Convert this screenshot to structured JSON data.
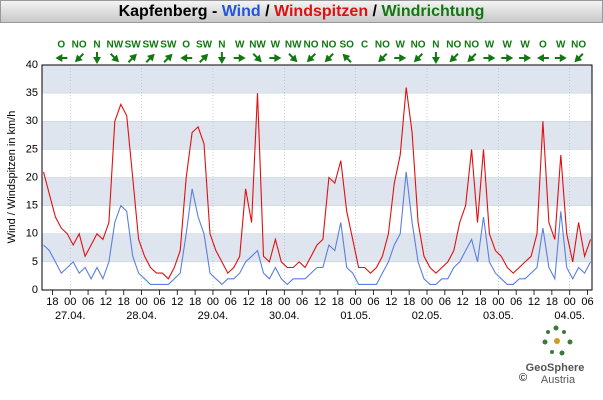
{
  "chart_data": {
    "type": "line",
    "title_parts": [
      {
        "text": "Kapfenberg - ",
        "color": "#000000"
      },
      {
        "text": "Wind",
        "color": "#2255dd"
      },
      {
        "text": " / ",
        "color": "#000000"
      },
      {
        "text": "Windspitzen",
        "color": "#dd1111"
      },
      {
        "text": " / ",
        "color": "#000000"
      },
      {
        "text": "Windrichtung",
        "color": "#117711"
      }
    ],
    "ylabel": "Wind / Windspitzen in km/h",
    "ylim": [
      0,
      40
    ],
    "yticks": [
      0,
      5,
      10,
      15,
      20,
      25,
      30,
      35,
      40
    ],
    "bands": true,
    "xlim": [
      38.5,
      223.5
    ],
    "xticks": [
      {
        "value": 42,
        "label": "18"
      },
      {
        "value": 48,
        "label": "00"
      },
      {
        "value": 54,
        "label": "06"
      },
      {
        "value": 60,
        "label": "12"
      },
      {
        "value": 66,
        "label": "18"
      },
      {
        "value": 72,
        "label": "00"
      },
      {
        "value": 78,
        "label": "06"
      },
      {
        "value": 84,
        "label": "12"
      },
      {
        "value": 90,
        "label": "18"
      },
      {
        "value": 96,
        "label": "00"
      },
      {
        "value": 102,
        "label": "06"
      },
      {
        "value": 108,
        "label": "12"
      },
      {
        "value": 114,
        "label": "18"
      },
      {
        "value": 120,
        "label": "00"
      },
      {
        "value": 126,
        "label": "06"
      },
      {
        "value": 132,
        "label": "12"
      },
      {
        "value": 138,
        "label": "18"
      },
      {
        "value": 144,
        "label": "00"
      },
      {
        "value": 150,
        "label": "06"
      },
      {
        "value": 156,
        "label": "12"
      },
      {
        "value": 162,
        "label": "18"
      },
      {
        "value": 168,
        "label": "00"
      },
      {
        "value": 174,
        "label": "06"
      },
      {
        "value": 180,
        "label": "12"
      },
      {
        "value": 186,
        "label": "18"
      },
      {
        "value": 192,
        "label": "00"
      },
      {
        "value": 198,
        "label": "06"
      },
      {
        "value": 204,
        "label": "12"
      },
      {
        "value": 210,
        "label": "18"
      },
      {
        "value": 216,
        "label": "00"
      },
      {
        "value": 222,
        "label": "06"
      }
    ],
    "xdates": [
      {
        "value": 48,
        "label": "27.04."
      },
      {
        "value": 72,
        "label": "28.04."
      },
      {
        "value": 96,
        "label": "29.04."
      },
      {
        "value": 120,
        "label": "30.04."
      },
      {
        "value": 144,
        "label": "01.05."
      },
      {
        "value": 168,
        "label": "02.05."
      },
      {
        "value": 192,
        "label": "03.05."
      },
      {
        "value": 216,
        "label": "04.05."
      }
    ],
    "x": [
      39,
      41,
      43,
      45,
      47,
      49,
      51,
      53,
      55,
      57,
      59,
      61,
      63,
      65,
      67,
      69,
      71,
      73,
      75,
      77,
      79,
      81,
      83,
      85,
      87,
      89,
      91,
      93,
      95,
      97,
      99,
      101,
      103,
      105,
      107,
      109,
      111,
      113,
      115,
      117,
      119,
      121,
      123,
      125,
      127,
      129,
      131,
      133,
      135,
      137,
      139,
      141,
      143,
      145,
      147,
      149,
      151,
      153,
      155,
      157,
      159,
      161,
      163,
      165,
      167,
      169,
      171,
      173,
      175,
      177,
      179,
      181,
      183,
      185,
      187,
      189,
      191,
      193,
      195,
      197,
      199,
      201,
      203,
      205,
      207,
      209,
      211,
      213,
      215,
      217,
      219,
      221,
      223
    ],
    "series": [
      {
        "name": "Wind",
        "color": "#5b7fe0",
        "values": [
          8,
          7,
          5,
          3,
          4,
          5,
          3,
          4,
          2,
          4,
          2,
          5,
          12,
          15,
          14,
          6,
          3,
          2,
          1,
          1,
          1,
          1,
          2,
          3,
          10,
          18,
          13,
          10,
          3,
          2,
          1,
          2,
          2,
          3,
          5,
          6,
          7,
          3,
          2,
          4,
          2,
          1,
          2,
          2,
          2,
          3,
          4,
          4,
          8,
          7,
          12,
          4,
          3,
          1,
          1,
          1,
          1,
          3,
          5,
          8,
          10,
          21,
          12,
          5,
          2,
          1,
          1,
          2,
          2,
          4,
          5,
          7,
          9,
          5,
          13,
          5,
          3,
          2,
          1,
          1,
          2,
          2,
          3,
          4,
          11,
          4,
          2,
          14,
          4,
          2,
          4,
          3,
          5
        ]
      },
      {
        "name": "Windspitzen",
        "color": "#e01010",
        "values": [
          21,
          17,
          13,
          11,
          10,
          8,
          10,
          6,
          8,
          10,
          9,
          12,
          30,
          33,
          31,
          20,
          9,
          6,
          4,
          3,
          3,
          2,
          4,
          7,
          20,
          28,
          29,
          26,
          10,
          7,
          5,
          3,
          4,
          6,
          18,
          12,
          35,
          6,
          5,
          9,
          5,
          4,
          4,
          5,
          4,
          6,
          8,
          9,
          20,
          19,
          23,
          14,
          9,
          4,
          4,
          3,
          4,
          6,
          10,
          19,
          24,
          36,
          28,
          12,
          6,
          4,
          3,
          4,
          5,
          7,
          12,
          15,
          25,
          12,
          25,
          10,
          7,
          6,
          4,
          3,
          4,
          5,
          6,
          10,
          30,
          12,
          9,
          24,
          10,
          5,
          12,
          6,
          9
        ]
      }
    ],
    "direction": {
      "color": "#117711",
      "x": [
        45,
        51,
        57,
        63,
        69,
        75,
        81,
        87,
        93,
        99,
        105,
        111,
        117,
        123,
        129,
        135,
        141,
        147,
        153,
        159,
        165,
        171,
        177,
        183,
        189,
        195,
        201,
        207,
        213,
        219
      ],
      "labels": [
        "O",
        "NO",
        "N",
        "NW",
        "SW",
        "SW",
        "SW",
        "O",
        "SW",
        "N",
        "W",
        "NW",
        "W",
        "NW",
        "NO",
        "NO",
        "SO",
        "C",
        "NO",
        "W",
        "NO",
        "N",
        "NO",
        "NO",
        "W",
        "W",
        "W",
        "O",
        "W",
        "NO"
      ],
      "degrees": [
        90,
        45,
        0,
        315,
        225,
        225,
        225,
        90,
        225,
        0,
        270,
        315,
        270,
        315,
        45,
        45,
        135,
        null,
        45,
        270,
        45,
        0,
        45,
        45,
        270,
        270,
        270,
        90,
        270,
        45
      ]
    },
    "logo": {
      "name": "GeoSphere",
      "sub": "Austria",
      "copyright": "©"
    }
  }
}
